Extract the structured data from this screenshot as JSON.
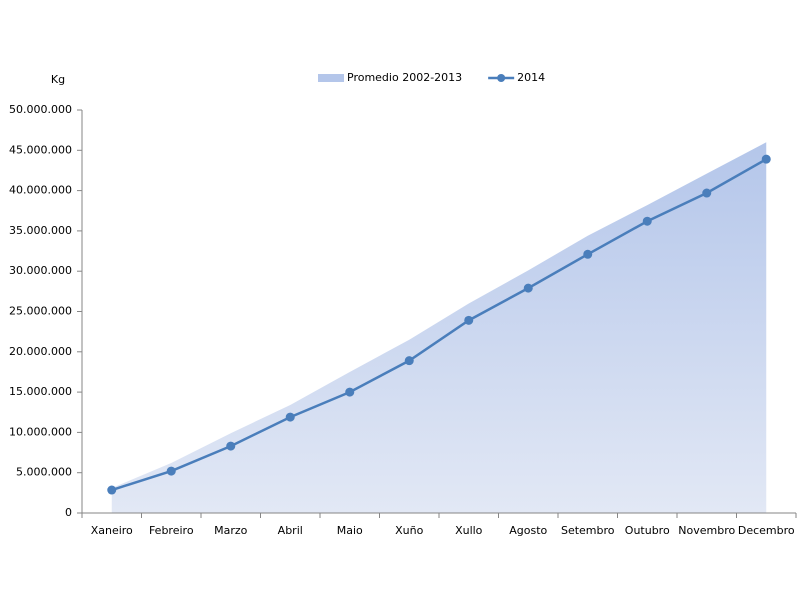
{
  "chart_data": {
    "type": "area-line",
    "y_label": "Kg",
    "categories": [
      "Xaneiro",
      "Febreiro",
      "Marzo",
      "Abril",
      "Maio",
      "Xuño",
      "Xullo",
      "Agosto",
      "Setembro",
      "Outubro",
      "Novembro",
      "Decembro"
    ],
    "series": [
      {
        "name": "Promedio 2002-2013",
        "kind": "area",
        "color": "#b4c6ea",
        "values": [
          3100000,
          6200000,
          9900000,
          13400000,
          17500000,
          21500000,
          26000000,
          30100000,
          34400000,
          38200000,
          42100000,
          46000000
        ]
      },
      {
        "name": "2014",
        "kind": "line",
        "color": "#4a7ebb",
        "values": [
          2850000,
          5200000,
          8300000,
          11900000,
          15000000,
          18900000,
          23900000,
          27900000,
          32100000,
          36200000,
          39700000,
          43900000
        ]
      }
    ],
    "ylim": [
      0,
      50000000
    ],
    "yticks": [
      0,
      {
        "value": 5000000,
        "label": "5.000.000"
      },
      {
        "value": 10000000,
        "label": "10.000.000"
      },
      {
        "value": 15000000,
        "label": "15.000.000"
      },
      {
        "value": 20000000,
        "label": "20.000.000"
      },
      {
        "value": 25000000,
        "label": "25.000.000"
      },
      {
        "value": 30000000,
        "label": "30.000.000"
      },
      {
        "value": 35000000,
        "label": "35.000.000"
      },
      {
        "value": 40000000,
        "label": "40.000.000"
      },
      {
        "value": 45000000,
        "label": "45.000.000"
      },
      {
        "value": 50000000,
        "label": "50.000.000"
      }
    ],
    "grid": false,
    "legend": "top"
  }
}
